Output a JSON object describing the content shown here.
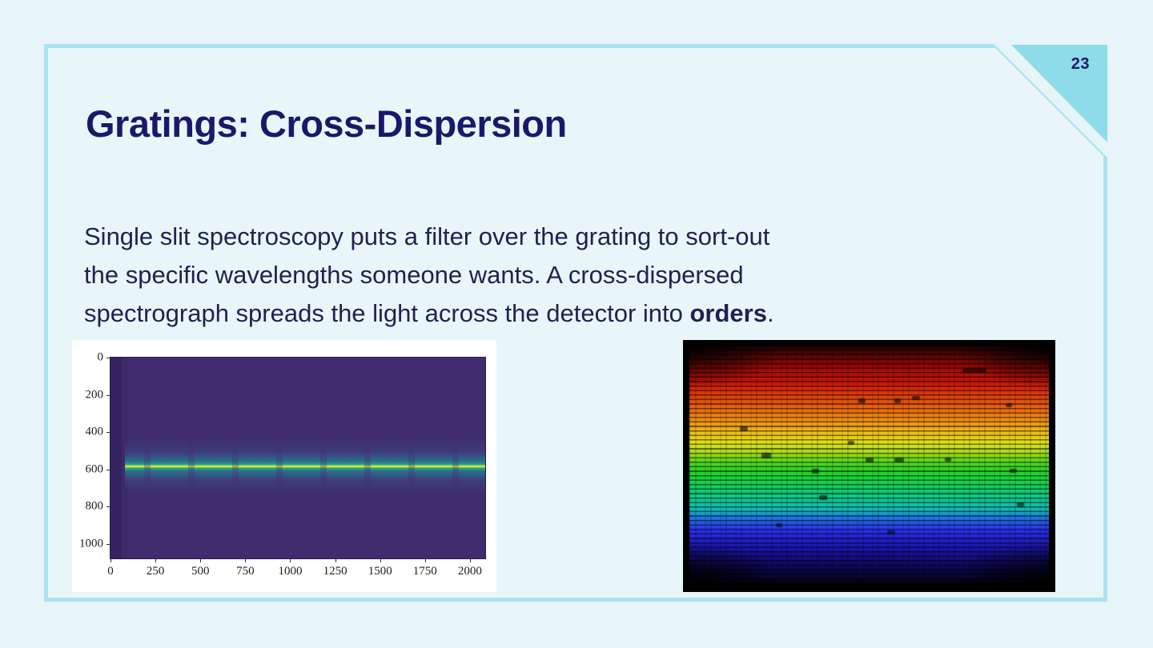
{
  "slide": {
    "page_number": "23",
    "title": "Gratings: Cross-Dispersion",
    "body": {
      "line1": "Single slit spectroscopy puts a filter over the grating to sort-out",
      "line2": "the specific wavelengths someone wants. A cross-dispersed",
      "line3_pre": "spectrograph spreads the light across the detector into ",
      "line3_bold": "orders",
      "line3_post": "."
    }
  },
  "colors": {
    "background": "#e7f4f8",
    "card_fill": "#e9f6f9",
    "card_border": "#a9e2f0",
    "corner_triangle": "#8edbe9",
    "heading_navy": "#1b186b",
    "body_navy": "#232050",
    "plot_background": "#402d70",
    "trace_core": "#d8e22b"
  },
  "chart_data": {
    "type": "heatmap",
    "title": "",
    "xlabel": "",
    "ylabel": "",
    "colormap": "viridis",
    "description": "2D detector image of a single-slit spectrum: one bright horizontal trace on a dark purple background",
    "x_ticks": [
      0,
      250,
      500,
      750,
      1000,
      1250,
      1500,
      1750,
      2000
    ],
    "y_ticks": [
      0,
      200,
      400,
      600,
      800,
      1000
    ],
    "x_range": [
      0,
      2085
    ],
    "y_range": [
      0,
      1078
    ],
    "trace_row": 585,
    "trace_start_col": 80,
    "grid": false,
    "legend": false
  },
  "spectrum_image": {
    "description": "Cross-dispersed echelle spectrogram: dense horizontal orders colored red (top) through orange, yellow, green, cyan and blue (bottom) with dark absorption features",
    "bands": [
      [
        0,
        "#1c0101"
      ],
      [
        4,
        "#5c0404"
      ],
      [
        9,
        "#9c0a05"
      ],
      [
        15,
        "#c81407"
      ],
      [
        21,
        "#dd3e0b"
      ],
      [
        27,
        "#ea6c0f"
      ],
      [
        32,
        "#f0940f"
      ],
      [
        37,
        "#edc212"
      ],
      [
        41,
        "#dfe215"
      ],
      [
        45,
        "#a6db16"
      ],
      [
        49,
        "#52d51b"
      ],
      [
        54,
        "#1fd22e"
      ],
      [
        59,
        "#13ce58"
      ],
      [
        64,
        "#0dc888"
      ],
      [
        69,
        "#0bbcb4"
      ],
      [
        73,
        "#1e6fe0"
      ],
      [
        78,
        "#2a2ee8"
      ],
      [
        84,
        "#1e19b8"
      ],
      [
        90,
        "#130d7c"
      ],
      [
        95,
        "#0a0648"
      ],
      [
        100,
        "#040218"
      ]
    ],
    "spots": [
      [
        76,
        9,
        30,
        6
      ],
      [
        62,
        21,
        10,
        5
      ],
      [
        47,
        22,
        9,
        6
      ],
      [
        57,
        22,
        8,
        6
      ],
      [
        88,
        24,
        8,
        5
      ],
      [
        14,
        34,
        10,
        6
      ],
      [
        44,
        40,
        8,
        5
      ],
      [
        20,
        45,
        12,
        7
      ],
      [
        49,
        47,
        10,
        6
      ],
      [
        57,
        47,
        12,
        6
      ],
      [
        71,
        47,
        8,
        5
      ],
      [
        34,
        52,
        9,
        6
      ],
      [
        89,
        52,
        9,
        5
      ],
      [
        36,
        63,
        10,
        6
      ],
      [
        91,
        66,
        9,
        6
      ],
      [
        24,
        75,
        8,
        5
      ],
      [
        55,
        78,
        10,
        5
      ]
    ]
  }
}
